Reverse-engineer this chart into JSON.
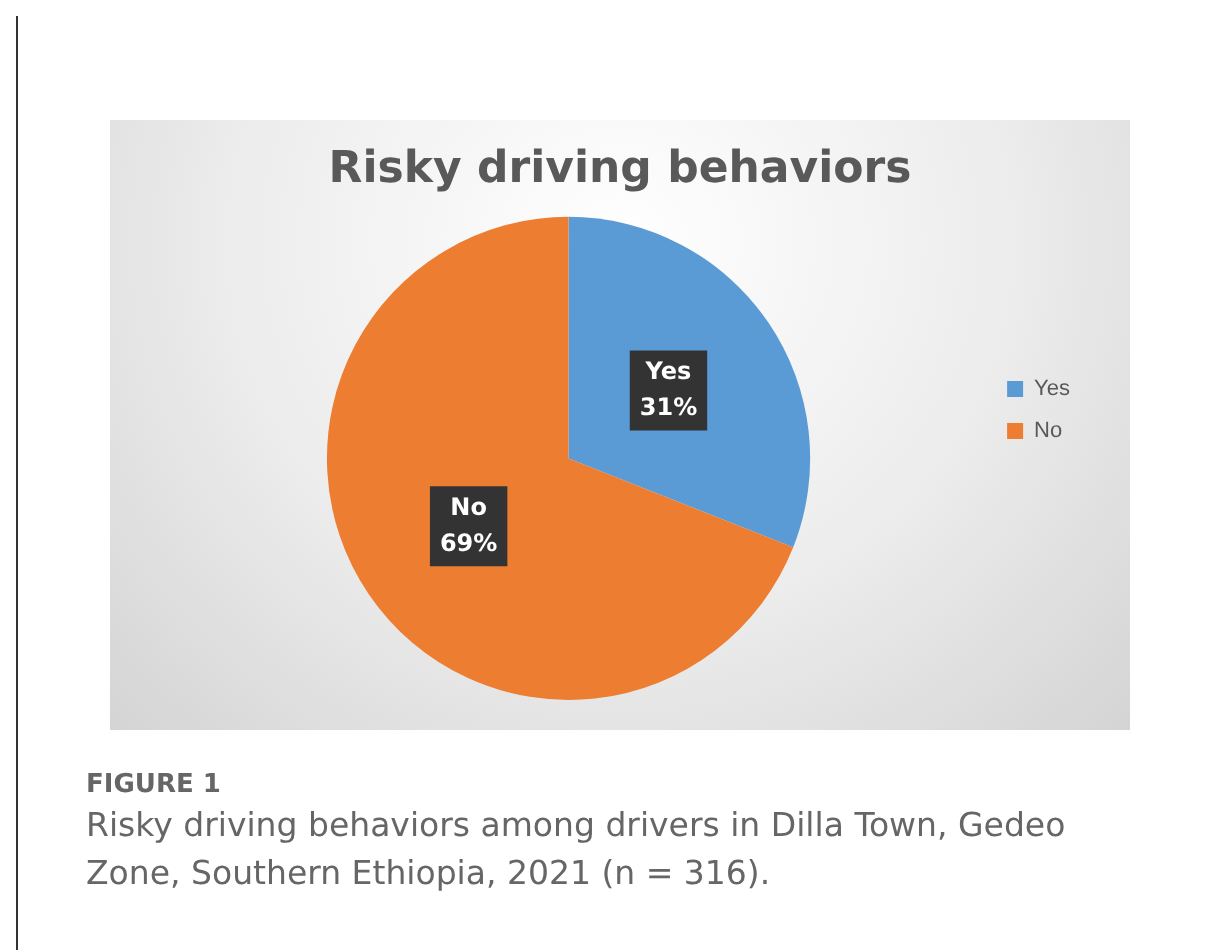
{
  "chart_data": {
    "type": "pie",
    "title": "Risky driving behaviors",
    "categories": [
      "Yes",
      "No"
    ],
    "values": [
      31,
      69
    ],
    "colors": [
      "#5b9bd5",
      "#ed7d31"
    ],
    "value_labels": [
      "31%",
      "69%"
    ],
    "legend": "right",
    "annotations": [
      "FIGURE 1",
      "Risky driving behaviors among drivers in Dilla Town, Gedeo Zone, Southern Ethiopia, 2021 (n = 316)."
    ]
  }
}
